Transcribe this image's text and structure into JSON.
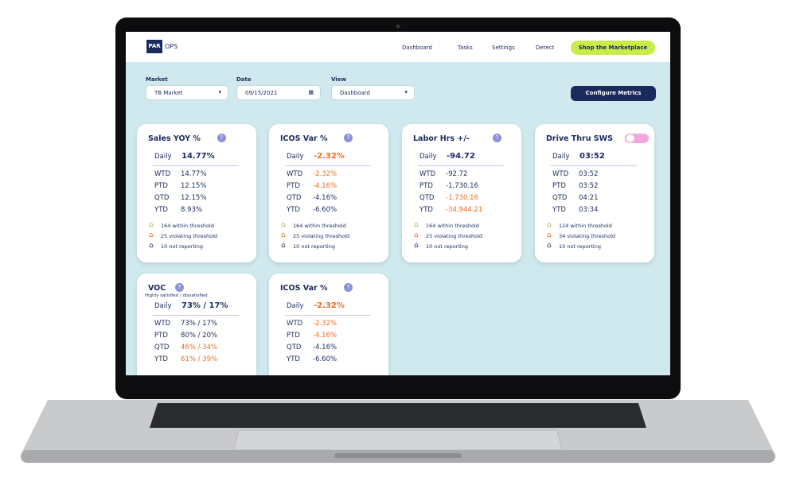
{
  "header": {
    "logo": "PAR",
    "product": "OPS",
    "nav": [
      "Dashboard",
      "Tasks",
      "Settings",
      "Detect"
    ],
    "cta": "Shop the Marketplace"
  },
  "filters": [
    {
      "label": "Market",
      "value": "TB Market",
      "dropdown": true
    },
    {
      "label": "Date",
      "value": "09/15/2021",
      "dropdown": false
    },
    {
      "label": "View",
      "value": "Dashboard",
      "dropdown": true
    }
  ],
  "configure_button": "Configure Metrics",
  "cards": [
    {
      "title": "Sales YOY %",
      "daily_label": "Daily",
      "daily": {
        "value": "14.77%",
        "alert": false
      },
      "rows": [
        {
          "label": "WTD",
          "value": "14.77%",
          "alert": false
        },
        {
          "label": "PTD",
          "value": "12.15%",
          "alert": false
        },
        {
          "label": "QTD",
          "value": "12.15%",
          "alert": false
        },
        {
          "label": "YTD",
          "value": "8.93%",
          "alert": false
        }
      ],
      "legend": [
        "164 within threshold",
        "25 violating threshold",
        "10 not reporting"
      ]
    },
    {
      "title": "ICOS Var %",
      "daily_label": "Daily",
      "daily": {
        "value": "-2.32%",
        "alert": true
      },
      "rows": [
        {
          "label": "WTD",
          "value": "-2.32%",
          "alert": true
        },
        {
          "label": "PTD",
          "value": "-4.16%",
          "alert": true
        },
        {
          "label": "QTD",
          "value": "-4.16%",
          "alert": false
        },
        {
          "label": "YTD",
          "value": "-6.60%",
          "alert": false
        }
      ],
      "legend": [
        "164 within threshold",
        "25 violating threshold",
        "10 not reporting"
      ]
    },
    {
      "title": "Labor Hrs +/-",
      "daily_label": "Daily",
      "daily": {
        "value": "-94.72",
        "alert": false
      },
      "rows": [
        {
          "label": "WTD",
          "value": "-92.72",
          "alert": false
        },
        {
          "label": "PTD",
          "value": "-1,730.16",
          "alert": false
        },
        {
          "label": "QTD",
          "value": "-1,730.16",
          "alert": true
        },
        {
          "label": "YTD",
          "value": "-34,944.21",
          "alert": true
        }
      ],
      "legend": [
        "164 within threshold",
        "25 violating threshold",
        "10 not reporting"
      ]
    },
    {
      "title": "Drive Thru SWS",
      "toggle": true,
      "daily_label": "Daily",
      "daily": {
        "value": "03:52",
        "alert": false
      },
      "rows": [
        {
          "label": "WTD",
          "value": "03:52",
          "alert": false
        },
        {
          "label": "PTD",
          "value": "03:52",
          "alert": false
        },
        {
          "label": "QTD",
          "value": "04:21",
          "alert": false
        },
        {
          "label": "YTD",
          "value": "03:34",
          "alert": false
        }
      ],
      "legend": [
        "124 within threshold",
        "34 violating threshold",
        "10 not reporting"
      ]
    },
    {
      "title": "VOC",
      "subtitle": "Highly satisfied / dissatisfied",
      "daily_label": "Daily",
      "daily": {
        "value": "73% / 17%",
        "alert": false
      },
      "rows": [
        {
          "label": "WTD",
          "value": "73% / 17%",
          "alert": false
        },
        {
          "label": "PTD",
          "value": "80% / 20%",
          "alert": false
        },
        {
          "label": "QTD",
          "value": "46% / 34%",
          "alert": true
        },
        {
          "label": "YTD",
          "value": "61% / 39%",
          "alert": true
        }
      ]
    },
    {
      "title": "ICOS Var %",
      "daily_label": "Daily",
      "daily": {
        "value": "-2.32%",
        "alert": true
      },
      "rows": [
        {
          "label": "WTD",
          "value": "-2.32%",
          "alert": true
        },
        {
          "label": "PTD",
          "value": "-4.16%",
          "alert": true
        },
        {
          "label": "QTD",
          "value": "-4.16%",
          "alert": false
        },
        {
          "label": "YTD",
          "value": "-6.60%",
          "alert": false
        }
      ]
    }
  ]
}
